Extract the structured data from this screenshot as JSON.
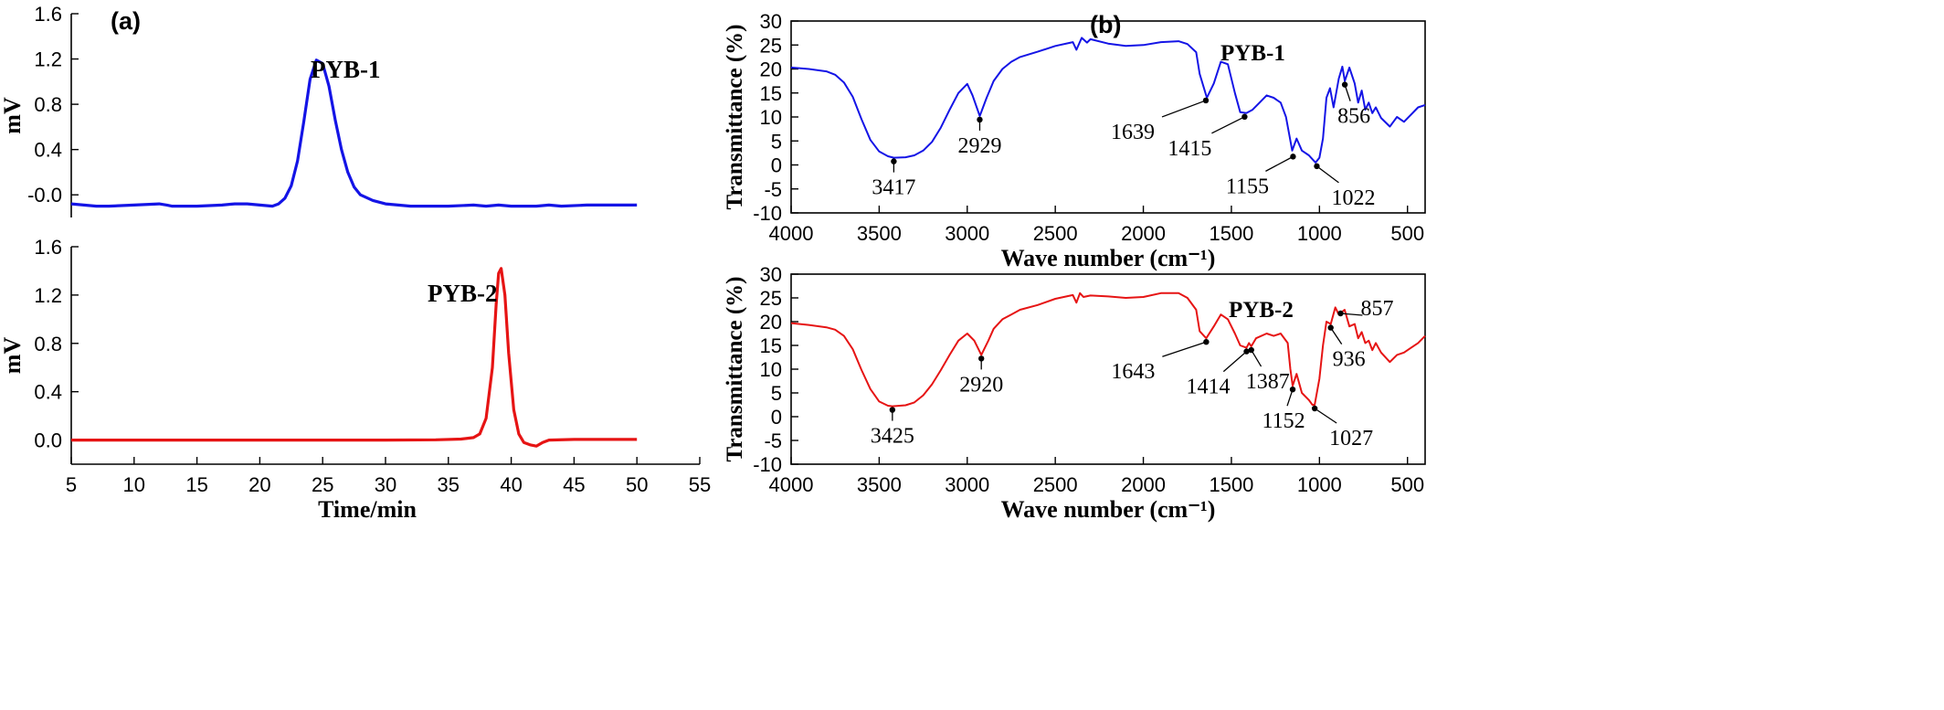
{
  "panels": {
    "a": "(a)",
    "b": "(b)"
  },
  "colors": {
    "blue": "#1414e6",
    "red": "#e61414"
  },
  "chart_data": [
    {
      "type": "line",
      "panel": "(a)",
      "name": "PYB-1",
      "label": "PYB-1",
      "ylabel": "mV",
      "xlabel": "",
      "xlim": [
        5,
        55
      ],
      "ylim": [
        -0.2,
        1.6
      ],
      "yticks": [
        "-0.0",
        "0.4",
        "0.8",
        "1.2",
        "1.6"
      ],
      "color": "#1414e6",
      "x": [
        5,
        6,
        7,
        8,
        10,
        12,
        12.6,
        13,
        15,
        17,
        18,
        19,
        20,
        21,
        21.5,
        22,
        22.5,
        23,
        23.5,
        24,
        24.5,
        25,
        25.5,
        26,
        26.5,
        27,
        27.5,
        28,
        29,
        30,
        31,
        32,
        33,
        35,
        37,
        38,
        39,
        40,
        42,
        43,
        44,
        46,
        48,
        50
      ],
      "y": [
        -0.08,
        -0.09,
        -0.1,
        -0.1,
        -0.09,
        -0.08,
        -0.09,
        -0.1,
        -0.1,
        -0.09,
        -0.08,
        -0.08,
        -0.09,
        -0.1,
        -0.08,
        -0.03,
        0.08,
        0.3,
        0.65,
        1.02,
        1.19,
        1.16,
        0.96,
        0.66,
        0.4,
        0.2,
        0.07,
        0.0,
        -0.05,
        -0.08,
        -0.09,
        -0.1,
        -0.1,
        -0.1,
        -0.09,
        -0.1,
        -0.09,
        -0.1,
        -0.1,
        -0.09,
        -0.1,
        -0.09,
        -0.09,
        -0.09
      ]
    },
    {
      "type": "line",
      "panel": "(a)",
      "name": "PYB-2",
      "label": "PYB-2",
      "ylabel": "mV",
      "xlabel": "Time/min",
      "xlim": [
        5,
        55
      ],
      "xticks": [
        "5",
        "10",
        "15",
        "20",
        "25",
        "30",
        "35",
        "40",
        "45",
        "50",
        "55"
      ],
      "ylim": [
        -0.2,
        1.6
      ],
      "yticks": [
        "0.0",
        "0.4",
        "0.8",
        "1.2",
        "1.6"
      ],
      "color": "#e61414",
      "x": [
        5,
        10,
        20,
        30,
        34,
        36,
        37,
        37.5,
        38,
        38.5,
        38.8,
        39,
        39.2,
        39.5,
        39.8,
        40.2,
        40.6,
        41,
        41.5,
        42,
        42.5,
        43,
        45,
        50
      ],
      "y": [
        0.0,
        0.0,
        0.0,
        0.0,
        0.002,
        0.008,
        0.02,
        0.05,
        0.18,
        0.6,
        1.12,
        1.38,
        1.42,
        1.2,
        0.72,
        0.25,
        0.05,
        -0.02,
        -0.04,
        -0.05,
        -0.02,
        0.0,
        0.005,
        0.005
      ]
    },
    {
      "type": "line",
      "panel": "(b)",
      "name": "PYB-1",
      "label": "PYB-1",
      "xlabel": "Wave number (cm⁻¹)",
      "ylabel": "Transmittance (%)",
      "xlim": [
        4000,
        400
      ],
      "xticks": [
        "4000",
        "3500",
        "3000",
        "2500",
        "2000",
        "1500",
        "1000",
        "500"
      ],
      "ylim": [
        -10,
        30
      ],
      "yticks": [
        "-10",
        "-5",
        "0",
        "5",
        "10",
        "15",
        "20",
        "25",
        "30"
      ],
      "color": "#1414e6",
      "x": [
        4000,
        3900,
        3800,
        3750,
        3700,
        3650,
        3600,
        3550,
        3500,
        3450,
        3417,
        3350,
        3300,
        3250,
        3200,
        3150,
        3100,
        3050,
        3000,
        2970,
        2929,
        2890,
        2850,
        2800,
        2750,
        2700,
        2600,
        2500,
        2400,
        2380,
        2350,
        2320,
        2300,
        2200,
        2100,
        2000,
        1900,
        1800,
        1750,
        1700,
        1680,
        1639,
        1600,
        1560,
        1520,
        1480,
        1450,
        1415,
        1380,
        1340,
        1300,
        1260,
        1220,
        1190,
        1170,
        1155,
        1130,
        1100,
        1060,
        1040,
        1022,
        1000,
        980,
        960,
        940,
        920,
        890,
        870,
        856,
        830,
        800,
        780,
        760,
        740,
        720,
        700,
        680,
        650,
        600,
        560,
        520,
        480,
        440,
        400
      ],
      "y": [
        20.3,
        20,
        19.5,
        18.8,
        17.2,
        14.2,
        9.5,
        5.2,
        2.8,
        1.8,
        1.5,
        1.6,
        2.0,
        3.0,
        4.8,
        7.8,
        11.5,
        15.0,
        16.9,
        14.5,
        10.2,
        14.0,
        17.5,
        20.0,
        21.5,
        22.5,
        23.6,
        24.8,
        25.6,
        24.0,
        26.5,
        25.5,
        26.2,
        25.3,
        24.8,
        25.0,
        25.6,
        25.8,
        25.2,
        23.5,
        19.0,
        14.0,
        17.0,
        21.5,
        21.0,
        15.0,
        11.0,
        10.8,
        11.5,
        13.0,
        14.5,
        14.0,
        13.0,
        10.0,
        6.0,
        3.0,
        5.5,
        3.0,
        2.0,
        1.2,
        0.5,
        1.5,
        5.5,
        14.0,
        16.0,
        12.0,
        18.0,
        20.5,
        17.5,
        20.3,
        17.0,
        13.0,
        15.5,
        11.5,
        13.0,
        10.8,
        12.0,
        9.8,
        8.0,
        10.0,
        9.0,
        10.5,
        12.0,
        12.5
      ]
    },
    {
      "type": "line",
      "panel": "(b)",
      "name": "PYB-2",
      "label": "PYB-2",
      "xlabel": "Wave number (cm⁻¹)",
      "ylabel": "Transmittance (%)",
      "xlim": [
        4000,
        400
      ],
      "xticks": [
        "4000",
        "3500",
        "3000",
        "2500",
        "2000",
        "1500",
        "1000",
        "500"
      ],
      "ylim": [
        -10,
        30
      ],
      "yticks": [
        "-10",
        "-5",
        "0",
        "5",
        "10",
        "15",
        "20",
        "25",
        "30"
      ],
      "color": "#e61414",
      "x": [
        4000,
        3900,
        3800,
        3750,
        3700,
        3650,
        3600,
        3550,
        3500,
        3450,
        3425,
        3350,
        3300,
        3250,
        3200,
        3150,
        3100,
        3050,
        3000,
        2960,
        2920,
        2880,
        2850,
        2800,
        2750,
        2700,
        2600,
        2500,
        2400,
        2380,
        2360,
        2340,
        2300,
        2200,
        2100,
        2000,
        1900,
        1800,
        1750,
        1700,
        1680,
        1643,
        1600,
        1560,
        1520,
        1480,
        1450,
        1414,
        1400,
        1387,
        1360,
        1300,
        1260,
        1220,
        1180,
        1165,
        1152,
        1130,
        1100,
        1060,
        1040,
        1027,
        1000,
        980,
        960,
        936,
        910,
        890,
        857,
        830,
        800,
        780,
        760,
        740,
        720,
        700,
        680,
        650,
        600,
        560,
        520,
        480,
        440,
        400
      ],
      "y": [
        19.7,
        19.3,
        18.8,
        18.3,
        17.0,
        14.2,
        9.8,
        5.8,
        3.2,
        2.3,
        2.2,
        2.4,
        3.0,
        4.5,
        6.8,
        9.8,
        13.0,
        16.0,
        17.5,
        16.0,
        13.0,
        16.0,
        18.5,
        20.5,
        21.5,
        22.5,
        23.5,
        24.8,
        25.6,
        24.0,
        26.0,
        25.2,
        25.5,
        25.3,
        25.0,
        25.2,
        26.0,
        26.0,
        25.0,
        22.5,
        18.0,
        16.5,
        19.0,
        21.5,
        20.5,
        17.5,
        15.0,
        14.5,
        15.5,
        14.8,
        16.5,
        17.5,
        17.0,
        17.5,
        15.5,
        10.0,
        6.5,
        9.0,
        5.0,
        3.5,
        2.5,
        2.5,
        8.0,
        15.0,
        20.0,
        19.5,
        23.0,
        21.5,
        22.5,
        19.0,
        19.5,
        16.5,
        17.8,
        15.5,
        16.0,
        14.0,
        15.5,
        13.5,
        11.5,
        13.0,
        13.5,
        14.5,
        15.5,
        17.0
      ]
    }
  ],
  "annotations": {
    "ir1": [
      {
        "text": "3417",
        "target": [
          3417,
          1.5
        ]
      },
      {
        "text": "2929",
        "target": [
          2929,
          10.2
        ]
      },
      {
        "text": "1639",
        "target": [
          1645,
          14.2
        ]
      },
      {
        "text": "1415",
        "target": [
          1425,
          10.8
        ]
      },
      {
        "text": "1155",
        "target": [
          1150,
          2.5
        ]
      },
      {
        "text": "1022",
        "target": [
          1015,
          0.5
        ]
      },
      {
        "text": "856",
        "target": [
          856,
          17.5
        ]
      }
    ],
    "ir2": [
      {
        "text": "3425",
        "target": [
          3425,
          2.2
        ]
      },
      {
        "text": "2920",
        "target": [
          2920,
          13.0
        ]
      },
      {
        "text": "1643",
        "target": [
          1643,
          16.5
        ]
      },
      {
        "text": "1414",
        "target": [
          1414,
          14.5
        ]
      },
      {
        "text": "1387",
        "target": [
          1387,
          14.8
        ]
      },
      {
        "text": "1152",
        "target": [
          1152,
          6.5
        ]
      },
      {
        "text": "1027",
        "target": [
          1027,
          2.5
        ]
      },
      {
        "text": "936",
        "target": [
          936,
          19.5
        ]
      },
      {
        "text": "857",
        "target": [
          880,
          22.5
        ]
      }
    ]
  }
}
